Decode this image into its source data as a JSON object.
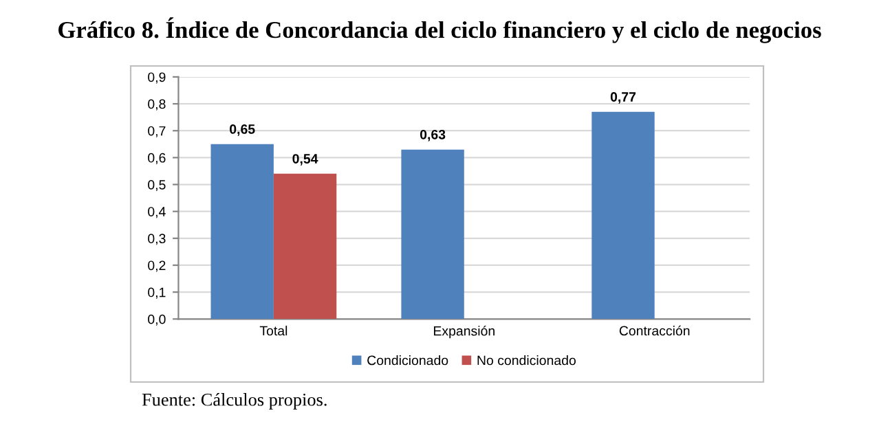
{
  "chart_data": {
    "type": "bar",
    "title": "Gráfico 8. Índice de Concordancia del ciclo financiero y el ciclo de negocios",
    "categories": [
      "Total",
      "Expansión",
      "Contracción"
    ],
    "series": [
      {
        "name": "Condicionado",
        "color": "#4f81bd",
        "values": [
          0.65,
          0.63,
          0.77
        ],
        "value_labels": [
          "0,65",
          "0,63",
          "0,77"
        ]
      },
      {
        "name": "No condicionado",
        "color": "#c0504d",
        "values": [
          0.54,
          null,
          null
        ],
        "value_labels": [
          "0,54",
          null,
          null
        ]
      }
    ],
    "ylim": [
      0,
      0.9
    ],
    "yticks": [
      {
        "value": 0,
        "label": "0,0"
      },
      {
        "value": 0.1,
        "label": "0,1"
      },
      {
        "value": 0.2,
        "label": "0,2"
      },
      {
        "value": 0.3,
        "label": "0,3"
      },
      {
        "value": 0.4,
        "label": "0,4"
      },
      {
        "value": 0.5,
        "label": "0,5"
      },
      {
        "value": 0.6,
        "label": "0,6"
      },
      {
        "value": 0.7,
        "label": "0,7"
      },
      {
        "value": 0.8,
        "label": "0,8"
      },
      {
        "value": 0.9,
        "label": "0,9"
      }
    ],
    "grid": "y",
    "legend": "bottom",
    "annotations": [
      "Fuente: Cálculos propios."
    ]
  }
}
